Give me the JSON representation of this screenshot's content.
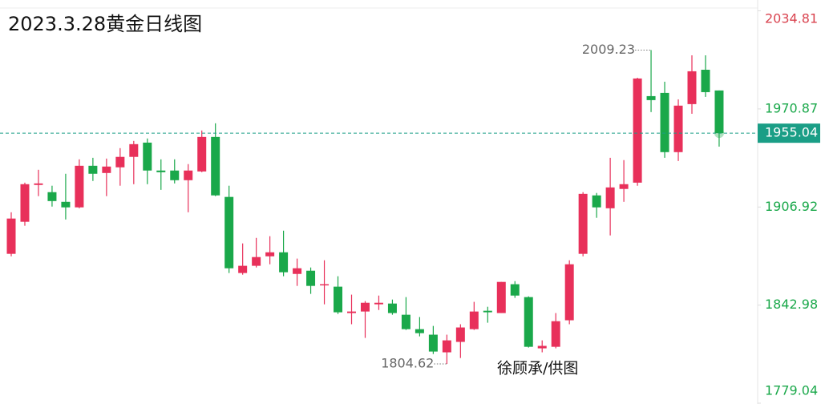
{
  "chart_data": {
    "type": "candlestick",
    "title": "2023.3.28黄金日线图",
    "annotations": [
      "徐顾承/供图"
    ],
    "up_color": "#e8305a",
    "down_color": "#1aa84a",
    "last_color": "#1a9e86",
    "ylim": [
      1779.04,
      2034.81
    ],
    "yticks": [
      2034.81,
      1970.87,
      1906.92,
      1842.98,
      1779.04
    ],
    "ytick_colors": [
      "#d9434f",
      "#1aa84a",
      "#1aa84a",
      "#1aa84a",
      "#1aa84a"
    ],
    "open": [
      1876.4,
      1897.3,
      1921.3,
      1916.6,
      1910.3,
      1906.7,
      1933.8,
      1929.1,
      1932.8,
      1939.6,
      1948.9,
      1930.7,
      1930.7,
      1924.4,
      1930.1,
      1952.6,
      1913.5,
      1863.9,
      1868.6,
      1874.8,
      1877.4,
      1863.3,
      1865.4,
      1856.0,
      1855.0,
      1837.8,
      1838.8,
      1843.5,
      1844.0,
      1836.7,
      1827.3,
      1823.7,
      1812.2,
      1819.0,
      1827.3,
      1839.3,
      1837.8,
      1856.6,
      1848.2,
      1814.8,
      1815.8,
      1833.1,
      1876.4,
      1914.5,
      1906.1,
      1918.7,
      1922.8,
      1979.2,
      1981.3,
      1942.7,
      1974.0,
      1996.4,
      1982.9
    ],
    "high": [
      1903.5,
      1922.8,
      1931.2,
      1920.8,
      1928.6,
      1938.0,
      1939.0,
      1938.5,
      1945.3,
      1950.0,
      1951.6,
      1938.0,
      1938.0,
      1934.9,
      1956.8,
      1961.5,
      1920.8,
      1883.2,
      1886.8,
      1887.9,
      1891.5,
      1873.3,
      1867.5,
      1872.2,
      1861.8,
      1849.8,
      1845.6,
      1849.2,
      1846.6,
      1848.2,
      1835.2,
      1829.4,
      1823.7,
      1830.5,
      1845.1,
      1841.9,
      1858.1,
      1858.6,
      1848.7,
      1820.0,
      1837.8,
      1872.2,
      1916.6,
      1916.1,
      1939.0,
      1937.5,
      1991.2,
      2009.23,
      1988.6,
      1977.1,
      2005.8,
      2005.8,
      1982.9
    ],
    "low": [
      1874.8,
      1894.7,
      1914.0,
      1907.2,
      1898.8,
      1906.1,
      1923.9,
      1914.0,
      1920.8,
      1921.8,
      1921.8,
      1918.1,
      1922.3,
      1903.5,
      1929.6,
      1914.0,
      1863.9,
      1862.8,
      1867.5,
      1869.6,
      1861.8,
      1855.5,
      1850.3,
      1843.5,
      1837.2,
      1830.5,
      1821.6,
      1839.8,
      1836.7,
      1826.8,
      1822.6,
      1811.1,
      1804.62,
      1808.5,
      1826.8,
      1831.5,
      1837.8,
      1847.7,
      1815.3,
      1812.2,
      1814.8,
      1830.5,
      1874.8,
      1899.9,
      1888.4,
      1910.3,
      1920.8,
      1968.8,
      1939.0,
      1936.9,
      1967.7,
      1978.7,
      1946.3
    ],
    "close": [
      1899.4,
      1921.8,
      1922.3,
      1910.8,
      1906.7,
      1933.8,
      1928.6,
      1933.3,
      1939.6,
      1947.9,
      1930.7,
      1929.6,
      1924.4,
      1930.7,
      1952.6,
      1914.5,
      1867.0,
      1868.6,
      1874.3,
      1877.4,
      1864.4,
      1867.0,
      1855.5,
      1856.6,
      1838.3,
      1838.8,
      1844.5,
      1844.5,
      1837.8,
      1827.3,
      1824.7,
      1812.7,
      1820.0,
      1828.4,
      1838.8,
      1838.3,
      1858.1,
      1849.2,
      1815.8,
      1816.4,
      1832.5,
      1869.6,
      1915.5,
      1906.7,
      1919.7,
      1921.8,
      1990.7,
      1976.6,
      1942.7,
      1973.0,
      1995.4,
      1981.8,
      1955.04
    ]
  }
}
